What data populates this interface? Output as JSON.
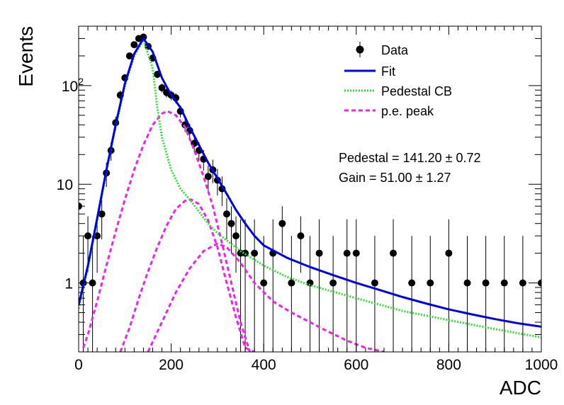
{
  "chart_data": {
    "type": "scatter",
    "xlabel": "ADC",
    "ylabel": "Events",
    "xlim": [
      0,
      1000
    ],
    "ylim": [
      0.2,
      400
    ],
    "y_scale": "log",
    "x_ticks": [
      0,
      200,
      400,
      600,
      800,
      1000
    ],
    "y_ticks": [
      {
        "value": 1,
        "label": "1"
      },
      {
        "value": 10,
        "label": "10"
      },
      {
        "value": 100,
        "label": "10",
        "sup": "2"
      }
    ],
    "grid": false,
    "legend_position": "top-right",
    "legend": [
      {
        "label": "Data",
        "style": "marker",
        "color": "#000000"
      },
      {
        "label": "Fit",
        "style": "solid",
        "color": "#0000e6"
      },
      {
        "label": "Pedestal CB",
        "style": "dotted",
        "color": "#33dd33"
      },
      {
        "label": "p.e. peak",
        "style": "dashed",
        "color": "#ee22ee"
      }
    ],
    "annotations": [
      "Pedestal = 141.20 ± 0.72",
      "Gain = 51.00 ± 1.27"
    ],
    "series": [
      {
        "name": "Data",
        "style": "points-with-errors",
        "color": "#000000",
        "x": [
          0,
          10,
          20,
          30,
          40,
          50,
          60,
          70,
          80,
          90,
          100,
          110,
          120,
          130,
          140,
          150,
          160,
          170,
          180,
          190,
          200,
          210,
          220,
          230,
          240,
          250,
          260,
          270,
          280,
          290,
          300,
          310,
          320,
          330,
          340,
          350,
          360,
          380,
          400,
          420,
          440,
          460,
          480,
          500,
          520,
          550,
          580,
          600,
          640,
          680,
          720,
          760,
          800,
          840,
          880,
          920,
          960,
          1000
        ],
        "y": [
          6,
          1,
          3,
          1,
          3,
          5,
          13,
          22,
          42,
          80,
          120,
          200,
          260,
          300,
          310,
          250,
          190,
          130,
          95,
          85,
          80,
          75,
          55,
          40,
          35,
          26,
          22,
          18,
          12,
          14,
          11,
          9,
          5,
          4,
          3,
          2,
          2,
          2,
          1,
          2,
          4,
          1,
          3,
          1,
          2,
          1,
          2,
          2,
          1,
          2,
          1,
          1,
          2,
          1,
          1,
          1,
          1,
          1
        ]
      },
      {
        "name": "Fit",
        "style": "solid",
        "color": "#0000e6",
        "x": [
          0,
          20,
          40,
          60,
          80,
          100,
          120,
          140,
          160,
          180,
          200,
          220,
          240,
          260,
          280,
          300,
          320,
          340,
          360,
          380,
          400,
          450,
          500,
          550,
          600,
          650,
          700,
          750,
          800,
          850,
          900,
          950,
          1000
        ],
        "y": [
          0.6,
          1.5,
          4.5,
          14,
          40,
          105,
          210,
          300,
          220,
          120,
          80,
          60,
          38,
          25,
          16.5,
          11.5,
          8,
          5.5,
          4,
          3,
          2.4,
          1.8,
          1.45,
          1.2,
          1.0,
          0.85,
          0.72,
          0.62,
          0.54,
          0.48,
          0.43,
          0.39,
          0.36
        ]
      },
      {
        "name": "Pedestal CB",
        "style": "dotted",
        "color": "#33dd33",
        "x": [
          0,
          20,
          40,
          60,
          80,
          100,
          120,
          140,
          160,
          170,
          180,
          200,
          220,
          240,
          260,
          280,
          300,
          350,
          400,
          450,
          500,
          600,
          700,
          800,
          900,
          1000
        ],
        "y": [
          0.55,
          1.4,
          4.3,
          13.5,
          38,
          100,
          200,
          290,
          150,
          60,
          30,
          14,
          9,
          7,
          5.3,
          4,
          3.2,
          2.1,
          1.5,
          1.15,
          0.95,
          0.7,
          0.52,
          0.42,
          0.34,
          0.28
        ]
      },
      {
        "name": "p.e. peak",
        "style": "dashed",
        "color": "#ee22ee",
        "x": [
          10,
          20,
          40,
          60,
          80,
          100,
          120,
          140,
          160,
          180,
          192,
          210,
          230,
          250,
          270,
          290,
          310,
          330,
          350,
          370
        ],
        "y": [
          0.22,
          0.3,
          0.65,
          1.5,
          3.3,
          7,
          14,
          25,
          40,
          52,
          55,
          50,
          38,
          22,
          12,
          6,
          2.5,
          1,
          0.4,
          0.2
        ]
      },
      {
        "name": "p.e. peak 2",
        "style": "dashed",
        "color": "#ee22ee",
        "x": [
          90,
          110,
          130,
          150,
          170,
          190,
          210,
          230,
          243,
          260,
          280,
          300,
          320,
          340,
          360,
          380
        ],
        "y": [
          0.2,
          0.35,
          0.7,
          1.3,
          2.3,
          3.8,
          5.6,
          6.8,
          7,
          6.3,
          4.3,
          2.3,
          1,
          0.45,
          0.22,
          0.2
        ]
      },
      {
        "name": "p.e. peak 3",
        "style": "dashed",
        "color": "#ee22ee",
        "x": [
          150,
          180,
          210,
          240,
          270,
          300,
          320,
          350,
          380,
          420,
          460,
          500,
          540,
          580,
          620,
          660
        ],
        "y": [
          0.2,
          0.4,
          0.8,
          1.4,
          2.1,
          2.5,
          2.3,
          1.6,
          1.0,
          0.65,
          0.5,
          0.4,
          0.32,
          0.26,
          0.22,
          0.2
        ]
      }
    ]
  }
}
